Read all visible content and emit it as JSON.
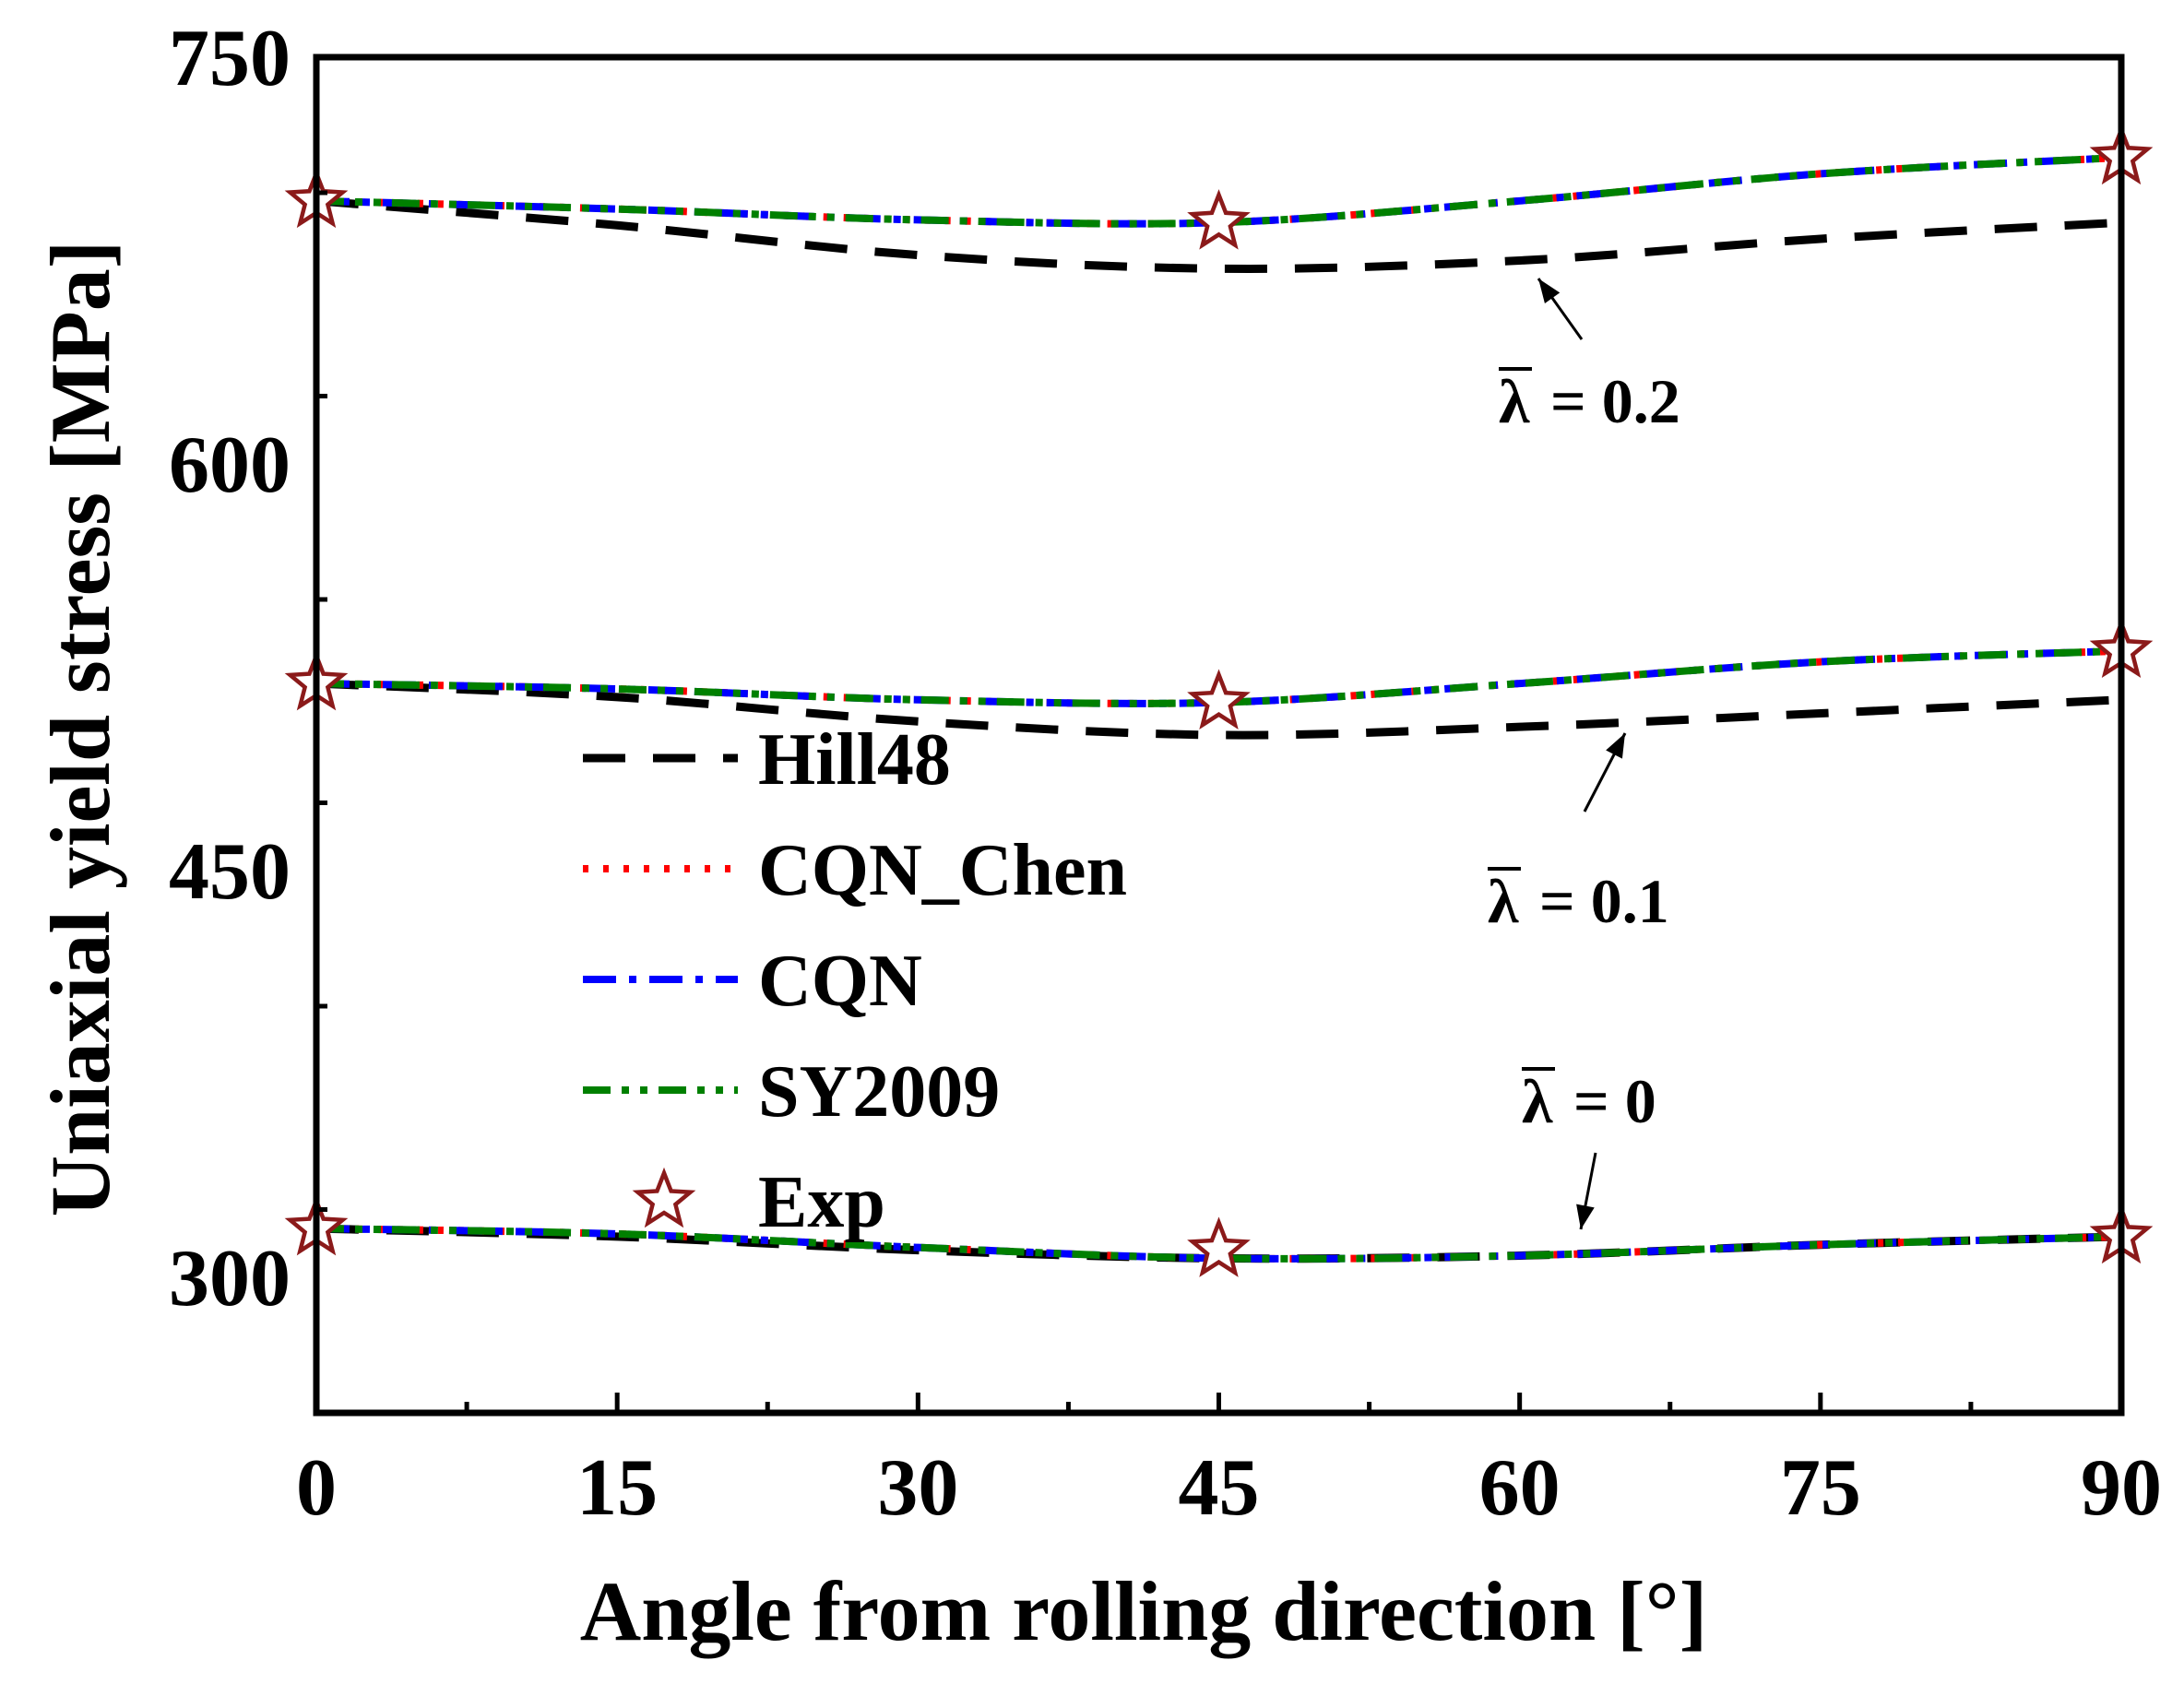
{
  "chart_data": {
    "type": "line",
    "title": "",
    "xlabel": "Angle from rolling direction [°]",
    "ylabel": "Uniaxial yield stress [MPa]",
    "xlim": [
      0,
      90
    ],
    "ylim": [
      250,
      750
    ],
    "xticks": [
      0,
      15,
      30,
      45,
      60,
      75,
      90
    ],
    "yticks": [
      300,
      450,
      600,
      750
    ],
    "x": [
      0,
      15,
      30,
      45,
      60,
      75,
      90
    ],
    "legend_position": "center-left",
    "series": [
      {
        "name": "Hill48",
        "style": "dash",
        "color": "#000000",
        "groups": [
          {
            "lambda": "0",
            "values": [
              318,
              315,
              310,
              307,
              308,
              312,
              315
            ]
          },
          {
            "lambda": "0.1",
            "values": [
              519,
              514,
              505,
              500,
              503,
              508,
              513
            ]
          },
          {
            "lambda": "0.2",
            "values": [
              697,
              688,
              677,
              672,
              675,
              683,
              689
            ]
          }
        ]
      },
      {
        "name": "CQN_Chen",
        "style": "dot",
        "color": "#ff0000",
        "groups": [
          {
            "lambda": "0",
            "values": [
              318,
              316,
              311,
              307,
              308,
              312,
              315
            ]
          },
          {
            "lambda": "0.1",
            "values": [
              519,
              517,
              513,
              512,
              519,
              527,
              531
            ]
          },
          {
            "lambda": "0.2",
            "values": [
              697,
              694,
              690,
              689,
              697,
              707,
              713
            ]
          }
        ]
      },
      {
        "name": "CQN",
        "style": "dashdot",
        "color": "#0000ff",
        "groups": [
          {
            "lambda": "0",
            "values": [
              318,
              316,
              311,
              307,
              308,
              312,
              315
            ]
          },
          {
            "lambda": "0.1",
            "values": [
              519,
              517,
              513,
              512,
              519,
              527,
              531
            ]
          },
          {
            "lambda": "0.2",
            "values": [
              697,
              694,
              690,
              689,
              697,
              707,
              713
            ]
          }
        ]
      },
      {
        "name": "SY2009",
        "style": "dashdotdot",
        "color": "#008000",
        "groups": [
          {
            "lambda": "0",
            "values": [
              318,
              316,
              311,
              307,
              308,
              312,
              315
            ]
          },
          {
            "lambda": "0.1",
            "values": [
              519,
              517,
              513,
              512,
              519,
              527,
              531
            ]
          },
          {
            "lambda": "0.2",
            "values": [
              697,
              694,
              690,
              689,
              697,
              707,
              713
            ]
          }
        ]
      },
      {
        "name": "Exp",
        "style": "star-marker",
        "color": "#8b1a1a",
        "points": [
          {
            "x": 0,
            "y": 318
          },
          {
            "x": 45,
            "y": 310
          },
          {
            "x": 90,
            "y": 315
          },
          {
            "x": 0,
            "y": 519
          },
          {
            "x": 45,
            "y": 512
          },
          {
            "x": 90,
            "y": 531
          },
          {
            "x": 0,
            "y": 697
          },
          {
            "x": 45,
            "y": 689
          },
          {
            "x": 90,
            "y": 713
          }
        ]
      }
    ],
    "annotations": [
      {
        "symbol": "λ",
        "text": "= 0.2",
        "lambda": "0.2",
        "arrow_to": {
          "x": 61,
          "y": 675
        }
      },
      {
        "symbol": "λ",
        "text": "= 0.1",
        "lambda": "0.1",
        "arrow_to": {
          "x": 65,
          "y": 506
        }
      },
      {
        "symbol": "λ",
        "text": "= 0",
        "lambda": "0",
        "arrow_to": {
          "x": 63,
          "y": 320
        }
      }
    ]
  }
}
